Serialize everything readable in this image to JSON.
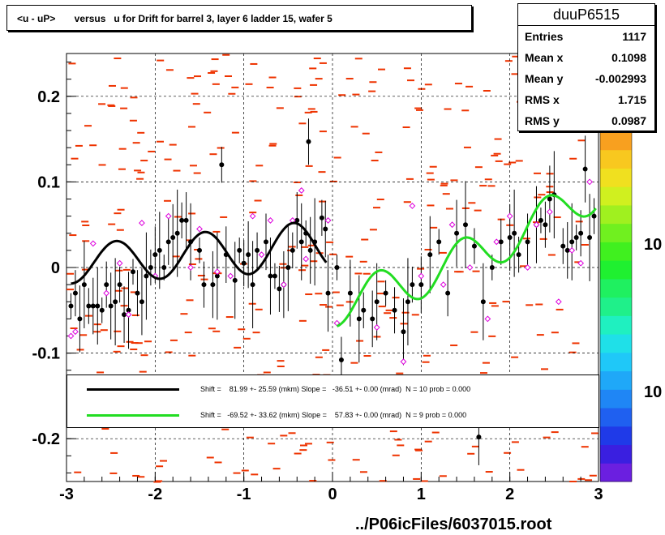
{
  "title": "<u - uP>       versus   u for Drift for barrel 3, layer 6 ladder 15, wafer 5",
  "stats": {
    "name": "duuP6515",
    "rows": [
      {
        "label": "Entries",
        "value": "1117"
      },
      {
        "label": "Mean x",
        "value": "0.1098"
      },
      {
        "label": "Mean y",
        "value": "-0.002993"
      },
      {
        "label": "RMS x",
        "value": "1.715"
      },
      {
        "label": "RMS y",
        "value": "0.0987"
      }
    ]
  },
  "legend": {
    "entries": [
      {
        "text": "Shift =    81.99 +- 25.59 (mkm) Slope =   -36.51 +- 0.00 (mrad)  N = 10 prob = 0.000",
        "color": "#000000"
      },
      {
        "text": "Shift =   -69.52 +- 33.62 (mkm) Slope =    57.83 +- 0.00 (mrad)  N = 9 prob = 0.000",
        "color": "#00dd00"
      }
    ]
  },
  "footer": "../P06icFiles/6037015.root",
  "colorbar": {
    "labels": [
      "10",
      "10"
    ],
    "colors": [
      "#6b1fe0",
      "#3a1fe0",
      "#1f3ae8",
      "#1f60f0",
      "#1f86f5",
      "#1fa8f8",
      "#1fc8f8",
      "#1fe0e8",
      "#1ff0c0",
      "#1ff08a",
      "#1ff060",
      "#1ff030",
      "#40f01f",
      "#70f01f",
      "#a0f01f",
      "#d0f01f",
      "#f0e01f",
      "#f8c81f",
      "#f8a01f"
    ]
  },
  "chart_data": {
    "type": "scatter",
    "xlim": [
      -3,
      3
    ],
    "ylim": [
      -0.25,
      0.25
    ],
    "x_ticks": [
      "-3",
      "-2",
      "-1",
      "0",
      "1",
      "2",
      "3"
    ],
    "y_ticks": [
      "-0.2",
      "-0.1",
      "0",
      "0.1",
      "0.2"
    ],
    "grid": true,
    "series": [
      {
        "marker": "filled-circle",
        "color": "#000000",
        "points": [
          [
            -2.95,
            -0.045
          ],
          [
            -2.9,
            -0.03
          ],
          [
            -2.85,
            -0.06
          ],
          [
            -2.8,
            -0.02
          ],
          [
            -2.75,
            -0.045
          ],
          [
            -2.7,
            -0.045
          ],
          [
            -2.65,
            -0.045
          ],
          [
            -2.6,
            -0.05
          ],
          [
            -2.55,
            -0.02
          ],
          [
            -2.5,
            -0.045
          ],
          [
            -2.45,
            -0.04
          ],
          [
            -2.4,
            -0.02
          ],
          [
            -2.35,
            -0.055
          ],
          [
            -2.3,
            -0.05
          ],
          [
            -2.25,
            -0.005
          ],
          [
            -2.2,
            -0.03
          ],
          [
            -2.15,
            -0.04
          ],
          [
            -2.1,
            -0.01
          ],
          [
            -2.05,
            0.0
          ],
          [
            -2.0,
            0.015
          ],
          [
            -1.95,
            0.02
          ],
          [
            -1.9,
            0.0
          ],
          [
            -1.85,
            0.03
          ],
          [
            -1.8,
            0.035
          ],
          [
            -1.75,
            0.04
          ],
          [
            -1.7,
            0.055
          ],
          [
            -1.65,
            0.055
          ],
          [
            -1.6,
            0.03
          ],
          [
            -1.5,
            0.02
          ],
          [
            -1.45,
            -0.02
          ],
          [
            -1.35,
            -0.02
          ],
          [
            -1.3,
            -0.01
          ],
          [
            -1.25,
            0.12
          ],
          [
            -1.2,
            0.015
          ],
          [
            -1.1,
            -0.015
          ],
          [
            -1.05,
            0.02
          ],
          [
            -1.0,
            0.005
          ],
          [
            -0.95,
            0.015
          ],
          [
            -0.9,
            -0.02
          ],
          [
            -0.85,
            0.02
          ],
          [
            -0.75,
            0.03
          ],
          [
            -0.7,
            -0.01
          ],
          [
            -0.65,
            -0.01
          ],
          [
            -0.6,
            -0.025
          ],
          [
            -0.55,
            -0.02
          ],
          [
            -0.5,
            0.0
          ],
          [
            -0.45,
            0.02
          ],
          [
            -0.4,
            0.055
          ],
          [
            -0.35,
            0.03
          ],
          [
            -0.3,
            0.04
          ],
          [
            -0.27,
            0.147
          ],
          [
            -0.25,
            0.02
          ],
          [
            -0.2,
            0.03
          ],
          [
            -0.12,
            0.058
          ],
          [
            -0.08,
            0.045
          ],
          [
            -0.05,
            -0.03
          ],
          [
            0.05,
            0.0
          ],
          [
            0.1,
            -0.108
          ],
          [
            0.2,
            -0.03
          ],
          [
            0.3,
            -0.06
          ],
          [
            0.35,
            -0.05
          ],
          [
            0.45,
            -0.06
          ],
          [
            0.5,
            -0.04
          ],
          [
            0.6,
            -0.03
          ],
          [
            0.7,
            -0.05
          ],
          [
            0.8,
            -0.075
          ],
          [
            0.85,
            -0.04
          ],
          [
            0.9,
            -0.02
          ],
          [
            1.0,
            -0.02
          ],
          [
            1.1,
            0.015
          ],
          [
            1.2,
            0.03
          ],
          [
            1.3,
            -0.03
          ],
          [
            1.4,
            0.04
          ],
          [
            1.5,
            0.05
          ],
          [
            1.6,
            0.025
          ],
          [
            1.65,
            -0.198
          ],
          [
            1.7,
            -0.04
          ],
          [
            1.8,
            0.0
          ],
          [
            1.9,
            0.03
          ],
          [
            2.0,
            0.035
          ],
          [
            2.05,
            0.04
          ],
          [
            2.1,
            0.015
          ],
          [
            2.2,
            0.03
          ],
          [
            2.3,
            0.05
          ],
          [
            2.35,
            0.055
          ],
          [
            2.4,
            0.05
          ],
          [
            2.45,
            0.08
          ],
          [
            2.5,
            0.085
          ],
          [
            2.6,
            0.025
          ],
          [
            2.65,
            0.02
          ],
          [
            2.7,
            0.03
          ],
          [
            2.75,
            0.035
          ],
          [
            2.8,
            0.04
          ],
          [
            2.85,
            0.115
          ],
          [
            2.9,
            0.035
          ],
          [
            2.95,
            0.06
          ]
        ]
      },
      {
        "marker": "open-diamond",
        "color": "#dd00dd",
        "points": [
          [
            -2.95,
            -0.08
          ],
          [
            -2.9,
            -0.075
          ],
          [
            -2.7,
            0.028
          ],
          [
            -2.55,
            -0.03
          ],
          [
            -2.4,
            0.005
          ],
          [
            -2.3,
            -0.055
          ],
          [
            -2.15,
            0.052
          ],
          [
            -2.0,
            -0.01
          ],
          [
            -1.85,
            0.06
          ],
          [
            -1.6,
            0.0
          ],
          [
            -1.5,
            0.045
          ],
          [
            -1.3,
            -0.005
          ],
          [
            -1.15,
            -0.01
          ],
          [
            -0.9,
            0.06
          ],
          [
            -0.8,
            0.015
          ],
          [
            -0.7,
            0.055
          ],
          [
            -0.55,
            -0.02
          ],
          [
            -0.45,
            0.055
          ],
          [
            -0.35,
            0.09
          ],
          [
            -0.3,
            0.01
          ],
          [
            -0.05,
            0.055
          ],
          [
            0.05,
            -0.065
          ],
          [
            0.5,
            -0.07
          ],
          [
            0.8,
            -0.11
          ],
          [
            0.9,
            0.072
          ],
          [
            1.0,
            -0.01
          ],
          [
            1.25,
            -0.02
          ],
          [
            1.35,
            0.05
          ],
          [
            1.55,
            0.0
          ],
          [
            1.75,
            -0.06
          ],
          [
            1.85,
            0.03
          ],
          [
            2.0,
            0.06
          ],
          [
            2.2,
            0.0
          ],
          [
            2.3,
            0.05
          ],
          [
            2.45,
            0.065
          ],
          [
            2.55,
            -0.04
          ],
          [
            2.7,
            0.02
          ],
          [
            2.8,
            0.005
          ],
          [
            2.9,
            0.1
          ]
        ]
      }
    ],
    "fits": [
      {
        "color": "#000000",
        "xrange": [
          -2.95,
          -0.05
        ]
      },
      {
        "color": "#00dd00",
        "xrange": [
          0.05,
          2.98
        ]
      }
    ]
  }
}
